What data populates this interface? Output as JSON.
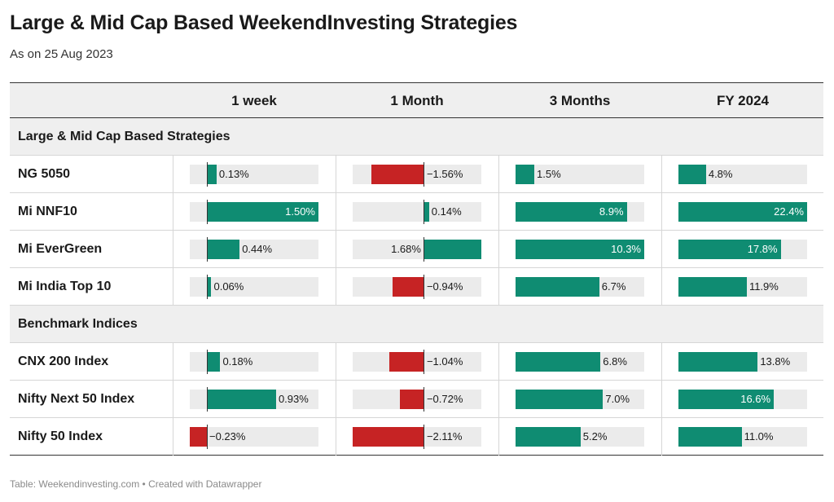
{
  "title": "Large & Mid Cap Based WeekendInvesting Strategies",
  "subtitle": "As on 25 Aug 2023",
  "footer": "Table: Weekendinvesting.com • Created with Datawrapper",
  "colors": {
    "positive": "#0f8c72",
    "negative": "#c62324",
    "track": "#ebebeb",
    "header_bg": "#efefef"
  },
  "chart_data": {
    "type": "table",
    "columns": [
      {
        "label": "1 week",
        "min": -0.23,
        "max": 1.5,
        "signed": true,
        "suffix": "%",
        "decimals": 2
      },
      {
        "label": "1 Month",
        "min": -2.11,
        "max": 1.68,
        "signed": true,
        "suffix": "%",
        "decimals": 2
      },
      {
        "label": "3 Months",
        "min": 0,
        "max": 10.3,
        "signed": false,
        "suffix": "%",
        "decimals": 1
      },
      {
        "label": "FY 2024",
        "min": 0,
        "max": 22.4,
        "signed": false,
        "suffix": "%",
        "decimals": 1
      }
    ],
    "groups": [
      {
        "name": "Large & Mid Cap Based Strategies",
        "rows": [
          {
            "name": "NG 5050",
            "values": [
              0.13,
              -1.56,
              1.5,
              4.8
            ]
          },
          {
            "name": "Mi NNF10",
            "values": [
              1.5,
              0.14,
              8.9,
              22.4
            ]
          },
          {
            "name": "Mi EverGreen",
            "values": [
              0.44,
              1.68,
              10.3,
              17.8
            ]
          },
          {
            "name": "Mi India Top 10",
            "values": [
              0.06,
              -0.94,
              6.7,
              11.9
            ]
          }
        ]
      },
      {
        "name": "Benchmark Indices",
        "rows": [
          {
            "name": "CNX 200 Index",
            "values": [
              0.18,
              -1.04,
              6.8,
              13.8
            ]
          },
          {
            "name": "Nifty Next 50 Index",
            "values": [
              0.93,
              -0.72,
              7.0,
              16.6
            ]
          },
          {
            "name": "Nifty 50 Index",
            "values": [
              -0.23,
              -2.11,
              5.2,
              11.0
            ]
          }
        ]
      }
    ]
  }
}
